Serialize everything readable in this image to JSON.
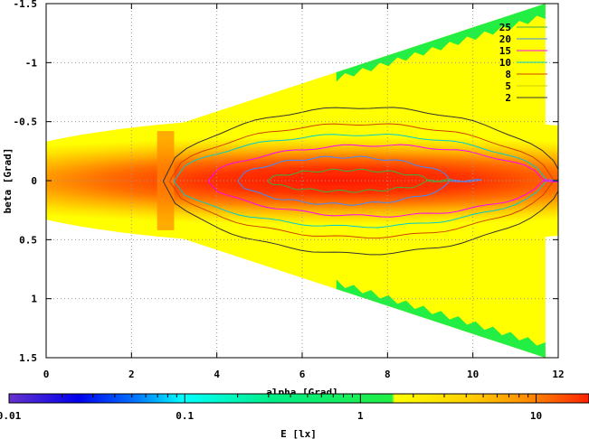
{
  "chart_data": {
    "type": "heatmap",
    "title": "",
    "xlabel": "alpha [Grad]",
    "ylabel": "beta [Grad]",
    "colorbar_label": "E [lx]",
    "xlim": [
      0,
      12
    ],
    "ylim": [
      -1.5,
      1.5
    ],
    "y_axis_inverted": true,
    "x_ticks": [
      "0",
      "2",
      "4",
      "6",
      "8",
      "10",
      "12"
    ],
    "y_ticks": [
      "-1.5",
      "-1",
      "-0.5",
      "0",
      "0.5",
      "1",
      "1.5"
    ],
    "colorbar_scale": "log",
    "colorbar_range": [
      0.01,
      20
    ],
    "colorbar_ticks": [
      "0.01",
      "0.1",
      "1",
      "10"
    ],
    "grid": true,
    "contour_levels": [
      {
        "label": "25",
        "color": "#44aa44"
      },
      {
        "label": "20",
        "color": "#4488ff"
      },
      {
        "label": "15",
        "color": "#ff00ff"
      },
      {
        "label": "10",
        "color": "#00cccc"
      },
      {
        "label": "8",
        "color": "#cc4400"
      },
      {
        "label": "5",
        "color": "#cccc00"
      },
      {
        "label": "2",
        "color": "#333333"
      }
    ],
    "data_region": {
      "alpha_min": 2.6,
      "alpha_max": 11.7,
      "beta_half_width_at_alpha_min": 0.42,
      "beta_half_width_at_alpha_max": 1.5
    }
  },
  "colors": {
    "green": "#22ee44",
    "yellow": "#ffff00",
    "orange": "#ff8800",
    "red": "#ff2200"
  }
}
